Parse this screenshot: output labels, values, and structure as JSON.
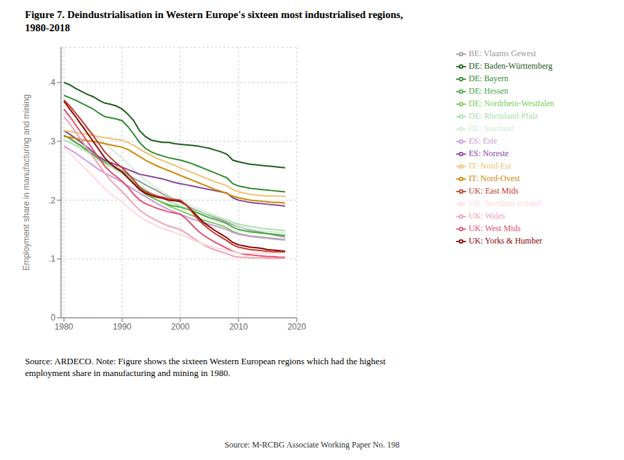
{
  "chart_data": {
    "type": "line",
    "title": "Figure 7. Deindustrialisation in Western Europe's sixteen most industrialised regions,\n1980-2018",
    "ylabel": "Employment share in manufacturing and mining",
    "annotations": [
      "Source: ARDECO. Note: Figure shows the sixteen Western European regions which had the highest\nemployment share in manufacturing and mining in 1980.",
      "Source: M-RCBG Associate Working Paper No. 198"
    ],
    "x": [
      1980,
      1981,
      1982,
      1983,
      1984,
      1985,
      1986,
      1987,
      1988,
      1989,
      1990,
      1991,
      1992,
      1993,
      1994,
      1995,
      1996,
      1997,
      1998,
      1999,
      2000,
      2001,
      2002,
      2003,
      2004,
      2005,
      2006,
      2007,
      2008,
      2009,
      2010,
      2011,
      2012,
      2013,
      2014,
      2015,
      2016,
      2017,
      2018
    ],
    "series": [
      {
        "name": "BE: Vlaams Gewest",
        "color": "#999999",
        "values": [
          0.31,
          0.305,
          0.298,
          0.292,
          0.285,
          0.278,
          0.272,
          0.266,
          0.26,
          0.256,
          0.25,
          0.243,
          0.237,
          0.232,
          0.226,
          0.221,
          0.216,
          0.21,
          0.205,
          0.2,
          0.196,
          0.191,
          0.186,
          0.182,
          0.178,
          0.174,
          0.17,
          0.167,
          0.163,
          0.158,
          0.155,
          0.152,
          0.149,
          0.147,
          0.145,
          0.143,
          0.141,
          0.139,
          0.137
        ]
      },
      {
        "name": "DE: Baden-Württemberg",
        "color": "#1a5c1a",
        "values": [
          0.4,
          0.396,
          0.39,
          0.385,
          0.38,
          0.376,
          0.37,
          0.365,
          0.363,
          0.36,
          0.355,
          0.346,
          0.335,
          0.318,
          0.308,
          0.302,
          0.3,
          0.298,
          0.298,
          0.296,
          0.295,
          0.294,
          0.293,
          0.292,
          0.29,
          0.288,
          0.285,
          0.282,
          0.278,
          0.268,
          0.265,
          0.263,
          0.261,
          0.26,
          0.259,
          0.258,
          0.257,
          0.256,
          0.255
        ]
      },
      {
        "name": "DE: Bayern",
        "color": "#2e8b2e",
        "values": [
          0.378,
          0.374,
          0.37,
          0.365,
          0.36,
          0.355,
          0.348,
          0.342,
          0.34,
          0.338,
          0.335,
          0.325,
          0.312,
          0.298,
          0.288,
          0.282,
          0.278,
          0.275,
          0.272,
          0.27,
          0.268,
          0.265,
          0.262,
          0.258,
          0.254,
          0.25,
          0.246,
          0.242,
          0.238,
          0.228,
          0.224,
          0.222,
          0.22,
          0.219,
          0.218,
          0.217,
          0.216,
          0.215,
          0.214
        ]
      },
      {
        "name": "DE: Hessen",
        "color": "#44aa44",
        "values": [
          0.31,
          0.305,
          0.298,
          0.292,
          0.285,
          0.278,
          0.27,
          0.263,
          0.258,
          0.252,
          0.246,
          0.238,
          0.228,
          0.218,
          0.21,
          0.205,
          0.2,
          0.196,
          0.192,
          0.19,
          0.188,
          0.185,
          0.182,
          0.178,
          0.174,
          0.17,
          0.167,
          0.164,
          0.16,
          0.154,
          0.15,
          0.148,
          0.146,
          0.145,
          0.144,
          0.143,
          0.142,
          0.141,
          0.14
        ]
      },
      {
        "name": "DE: Nordrhein-Westfalen",
        "color": "#77cc55",
        "values": [
          0.318,
          0.312,
          0.305,
          0.298,
          0.29,
          0.282,
          0.274,
          0.267,
          0.26,
          0.254,
          0.248,
          0.24,
          0.23,
          0.22,
          0.212,
          0.206,
          0.2,
          0.195,
          0.19,
          0.186,
          0.182,
          0.178,
          0.174,
          0.17,
          0.166,
          0.163,
          0.16,
          0.157,
          0.153,
          0.147,
          0.143,
          0.141,
          0.139,
          0.138,
          0.137,
          0.136,
          0.135,
          0.134,
          0.133
        ]
      },
      {
        "name": "DE: Rheinland-Pfalz",
        "color": "#aaddaa",
        "values": [
          0.302,
          0.298,
          0.293,
          0.288,
          0.282,
          0.275,
          0.268,
          0.262,
          0.258,
          0.252,
          0.247,
          0.24,
          0.232,
          0.224,
          0.218,
          0.212,
          0.207,
          0.203,
          0.198,
          0.194,
          0.19,
          0.187,
          0.184,
          0.181,
          0.178,
          0.175,
          0.172,
          0.17,
          0.167,
          0.162,
          0.159,
          0.157,
          0.155,
          0.154,
          0.152,
          0.151,
          0.15,
          0.149,
          0.148
        ]
      },
      {
        "name": "DE: Saarland",
        "color": "#d4ecd4",
        "values": [
          0.348,
          0.342,
          0.335,
          0.328,
          0.32,
          0.312,
          0.304,
          0.296,
          0.288,
          0.28,
          0.272,
          0.262,
          0.252,
          0.242,
          0.234,
          0.227,
          0.22,
          0.214,
          0.208,
          0.203,
          0.198,
          0.194,
          0.19,
          0.186,
          0.182,
          0.178,
          0.174,
          0.17,
          0.166,
          0.16,
          0.156,
          0.153,
          0.151,
          0.149,
          0.148,
          0.147,
          0.146,
          0.145,
          0.144
        ]
      },
      {
        "name": "ES: Noreste",
        "color": "#884499",
        "values": [
          0.318,
          0.312,
          0.305,
          0.298,
          0.29,
          0.282,
          0.274,
          0.268,
          0.264,
          0.26,
          0.256,
          0.252,
          0.248,
          0.244,
          0.242,
          0.24,
          0.238,
          0.236,
          0.233,
          0.23,
          0.228,
          0.226,
          0.224,
          0.222,
          0.22,
          0.218,
          0.216,
          0.214,
          0.212,
          0.204,
          0.2,
          0.198,
          0.196,
          0.195,
          0.194,
          0.193,
          0.192,
          0.191,
          0.19
        ]
      },
      {
        "name": "ES: Este",
        "color": "#cc99dd",
        "values": [
          0.292,
          0.286,
          0.28,
          0.273,
          0.266,
          0.259,
          0.252,
          0.246,
          0.241,
          0.236,
          0.23,
          0.224,
          0.218,
          0.212,
          0.206,
          0.2,
          0.194,
          0.189,
          0.184,
          0.18,
          0.176,
          0.172,
          0.168,
          0.165,
          0.162,
          0.159,
          0.156,
          0.153,
          0.15,
          0.145,
          0.142,
          0.14,
          0.138,
          0.137,
          0.136,
          0.135,
          0.134,
          0.133,
          0.132
        ]
      },
      {
        "name": "IT: Nord-Ovest",
        "color": "#cc8800",
        "values": [
          0.308,
          0.307,
          0.305,
          0.303,
          0.301,
          0.3,
          0.298,
          0.296,
          0.294,
          0.292,
          0.29,
          0.286,
          0.28,
          0.274,
          0.268,
          0.263,
          0.258,
          0.254,
          0.25,
          0.246,
          0.242,
          0.238,
          0.234,
          0.23,
          0.226,
          0.222,
          0.218,
          0.215,
          0.211,
          0.207,
          0.204,
          0.202,
          0.2,
          0.199,
          0.198,
          0.197,
          0.196,
          0.196,
          0.195
        ]
      },
      {
        "name": "IT: Nord-Est",
        "color": "#f0c070",
        "values": [
          0.318,
          0.317,
          0.315,
          0.313,
          0.312,
          0.31,
          0.308,
          0.306,
          0.305,
          0.303,
          0.302,
          0.298,
          0.293,
          0.287,
          0.281,
          0.276,
          0.271,
          0.267,
          0.263,
          0.259,
          0.255,
          0.251,
          0.247,
          0.243,
          0.239,
          0.235,
          0.231,
          0.228,
          0.224,
          0.218,
          0.214,
          0.212,
          0.21,
          0.209,
          0.208,
          0.207,
          0.207,
          0.207,
          0.206
        ]
      },
      {
        "name": "UK: Yorks & Humber",
        "color": "#8b0000",
        "values": [
          0.368,
          0.355,
          0.342,
          0.328,
          0.314,
          0.3,
          0.286,
          0.272,
          0.262,
          0.254,
          0.248,
          0.238,
          0.228,
          0.218,
          0.212,
          0.208,
          0.205,
          0.203,
          0.2,
          0.199,
          0.198,
          0.192,
          0.182,
          0.172,
          0.162,
          0.155,
          0.148,
          0.142,
          0.136,
          0.128,
          0.124,
          0.122,
          0.12,
          0.119,
          0.118,
          0.116,
          0.115,
          0.114,
          0.113
        ]
      },
      {
        "name": "UK: East Mids",
        "color": "#c0392b",
        "values": [
          0.37,
          0.36,
          0.348,
          0.336,
          0.323,
          0.31,
          0.296,
          0.282,
          0.272,
          0.263,
          0.255,
          0.245,
          0.234,
          0.222,
          0.215,
          0.21,
          0.207,
          0.205,
          0.202,
          0.201,
          0.2,
          0.192,
          0.18,
          0.168,
          0.158,
          0.15,
          0.143,
          0.137,
          0.131,
          0.124,
          0.12,
          0.118,
          0.116,
          0.115,
          0.114,
          0.113,
          0.112,
          0.112,
          0.111
        ]
      },
      {
        "name": "UK: West Mids",
        "color": "#e05070",
        "values": [
          0.355,
          0.342,
          0.328,
          0.314,
          0.3,
          0.286,
          0.272,
          0.258,
          0.248,
          0.24,
          0.232,
          0.222,
          0.21,
          0.2,
          0.194,
          0.19,
          0.186,
          0.183,
          0.18,
          0.178,
          0.176,
          0.168,
          0.158,
          0.148,
          0.14,
          0.134,
          0.128,
          0.123,
          0.118,
          0.113,
          0.11,
          0.108,
          0.107,
          0.106,
          0.105,
          0.104,
          0.104,
          0.103,
          0.103
        ]
      },
      {
        "name": "UK: Wales",
        "color": "#f0a0b0",
        "values": [
          0.342,
          0.33,
          0.316,
          0.302,
          0.288,
          0.274,
          0.26,
          0.246,
          0.234,
          0.224,
          0.214,
          0.204,
          0.193,
          0.183,
          0.176,
          0.17,
          0.165,
          0.16,
          0.156,
          0.153,
          0.15,
          0.144,
          0.137,
          0.13,
          0.124,
          0.119,
          0.115,
          0.112,
          0.109,
          0.105,
          0.103,
          0.103,
          0.102,
          0.102,
          0.102,
          0.101,
          0.101,
          0.101,
          0.101
        ]
      },
      {
        "name": "UK: Northern Ireland",
        "color": "#ffd8de",
        "values": [
          0.29,
          0.28,
          0.27,
          0.26,
          0.25,
          0.24,
          0.23,
          0.22,
          0.211,
          0.204,
          0.197,
          0.188,
          0.18,
          0.172,
          0.166,
          0.161,
          0.156,
          0.152,
          0.148,
          0.145,
          0.142,
          0.138,
          0.133,
          0.129,
          0.125,
          0.122,
          0.119,
          0.117,
          0.115,
          0.112,
          0.11,
          0.11,
          0.11,
          0.11,
          0.11,
          0.11,
          0.11,
          0.11,
          0.11
        ]
      }
    ],
    "xlim": [
      1979.5,
      2020
    ],
    "xticks": [
      1980,
      1990,
      2000,
      2010,
      2020
    ],
    "ylim": [
      0,
      0.46
    ],
    "yticks": [
      0,
      {
        "value": 0.1,
        "label": ".1"
      },
      {
        "value": 0.2,
        "label": ".2"
      },
      {
        "value": 0.3,
        "label": ".3"
      },
      {
        "value": 0.4,
        "label": ".4"
      }
    ],
    "grid": true,
    "legend": "right"
  }
}
